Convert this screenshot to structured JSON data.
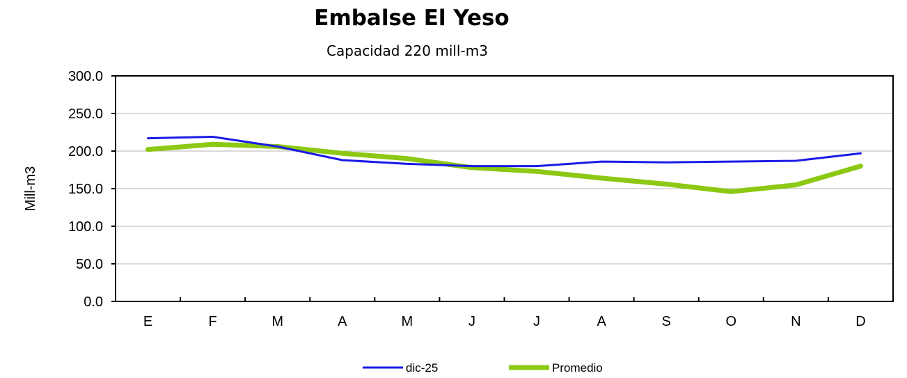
{
  "colors": {
    "series_1": "#1a1ae6",
    "series_2": "#8cc814",
    "grid": "#b4b4b4",
    "axis": "#000000"
  },
  "chart_data": {
    "type": "line",
    "title": "Embalse El Yeso",
    "subtitle": "Capacidad 220 mill-m3",
    "xlabel": "",
    "ylabel": "Mill-m3",
    "ylim": [
      0,
      300
    ],
    "yticks": [
      "0.0",
      "50.0",
      "100.0",
      "150.0",
      "200.0",
      "250.0",
      "300.0"
    ],
    "categories": [
      "E",
      "F",
      "M",
      "A",
      "M",
      "J",
      "J",
      "A",
      "S",
      "O",
      "N",
      "D"
    ],
    "grid": true,
    "legend_position": "bottom",
    "series": [
      {
        "name": "dic-25",
        "values": [
          217,
          219,
          206,
          188,
          183,
          180,
          180,
          186,
          185,
          186,
          187,
          197
        ]
      },
      {
        "name": "Promedio",
        "values": [
          202,
          209,
          206,
          197,
          190,
          178,
          173,
          164,
          156,
          146,
          155,
          180
        ]
      }
    ]
  }
}
